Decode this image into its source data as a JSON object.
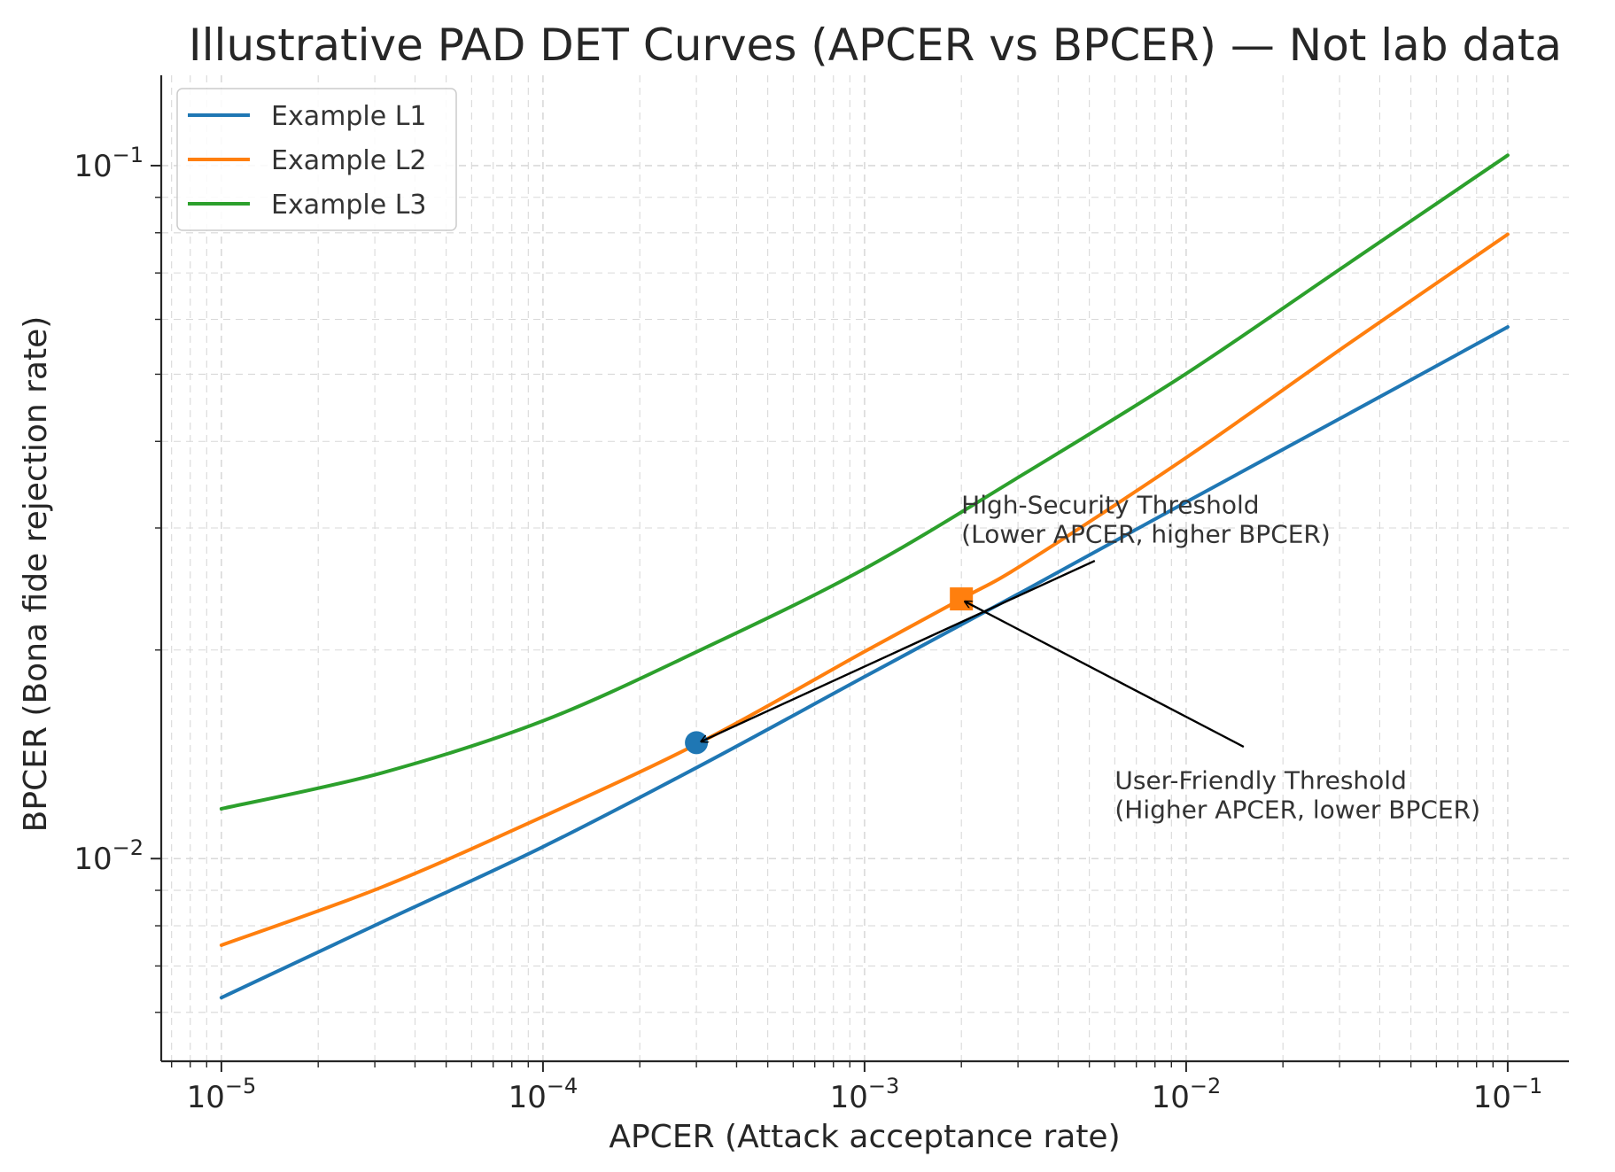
{
  "chart_data": {
    "type": "line",
    "title": "Illustrative PAD DET Curves (APCER vs BPCER) — Not lab data",
    "xlabel": "APCER (Attack acceptance rate)",
    "ylabel": "BPCER (Bona fide rejection rate)",
    "x_scale": "log",
    "y_scale": "log",
    "xlim": [
      6.5e-06,
      0.155
    ],
    "ylim": [
      0.0051,
      0.135
    ],
    "grid": true,
    "legend_position": "top-left",
    "x_ticks": [
      {
        "base": "10",
        "exp": "−5",
        "value": 1e-05
      },
      {
        "base": "10",
        "exp": "−4",
        "value": 0.0001
      },
      {
        "base": "10",
        "exp": "−3",
        "value": 0.001
      },
      {
        "base": "10",
        "exp": "−2",
        "value": 0.01
      },
      {
        "base": "10",
        "exp": "−1",
        "value": 0.1
      }
    ],
    "y_ticks": [
      {
        "base": "10",
        "exp": "−2",
        "value": 0.01
      },
      {
        "base": "10",
        "exp": "−1",
        "value": 0.1
      }
    ],
    "series": [
      {
        "name": "Example L1",
        "color": "#1f77b4",
        "x": [
          1e-05,
          3.16e-05,
          0.0001,
          0.000316,
          0.001,
          0.00316,
          0.01,
          0.0316,
          0.1
        ],
        "y": [
          0.0063,
          0.0081,
          0.0104,
          0.0137,
          0.0183,
          0.0244,
          0.0327,
          0.0437,
          0.0585
        ]
      },
      {
        "name": "Example L2",
        "color": "#ff7f0e",
        "x": [
          1e-05,
          3.16e-05,
          0.0001,
          0.000316,
          0.001,
          0.002,
          0.00316,
          0.01,
          0.0316,
          0.1
        ],
        "y": [
          0.0075,
          0.0091,
          0.0115,
          0.0148,
          0.0199,
          0.0237,
          0.0267,
          0.0379,
          0.0551,
          0.0796
        ]
      },
      {
        "name": "Example L3",
        "color": "#2ca02c",
        "x": [
          1e-05,
          3.16e-05,
          0.0001,
          0.000316,
          0.001,
          0.00316,
          0.01,
          0.0316,
          0.1
        ],
        "y": [
          0.0118,
          0.0133,
          0.0158,
          0.0201,
          0.0262,
          0.036,
          0.0501,
          0.072,
          0.1035
        ]
      }
    ],
    "markers": [
      {
        "shape": "circle",
        "color": "#1f77b4",
        "x": 0.0003,
        "y": 0.0147
      },
      {
        "shape": "square",
        "color": "#ff7f0e",
        "x": 0.002,
        "y": 0.0237
      }
    ],
    "annotations": [
      {
        "lines": [
          "High-Security Threshold",
          "(Lower APCER, higher BPCER)"
        ],
        "text_x": 0.002,
        "text_y": 0.0315,
        "arrow_from_x": 0.0052,
        "arrow_from_y": 0.0269,
        "arrow_to_x": 0.00031,
        "arrow_to_y": 0.01475
      },
      {
        "lines": [
          "User-Friendly Threshold",
          "(Higher APCER, lower BPCER)"
        ],
        "text_x": 0.006,
        "text_y": 0.0126,
        "arrow_from_x": 0.0151,
        "arrow_from_y": 0.0145,
        "arrow_to_x": 0.00205,
        "arrow_to_y": 0.0235
      }
    ]
  }
}
